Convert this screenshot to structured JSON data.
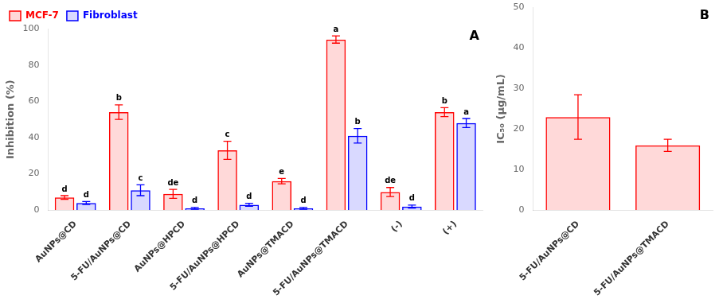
{
  "chart_data": [
    {
      "type": "bar",
      "categories": [
        "AuNPs@CD",
        "5-FU/AuNPs@CD",
        "AuNPs@HPCD",
        "5-FU/AuNPs@HPCD",
        "AuNPs@TMACD",
        "5-FU/AuNPs@TMACD",
        "(-)",
        "(+)"
      ],
      "series": [
        {
          "name": "MCF-7",
          "color": "#FF0000",
          "values": [
            7,
            54,
            9,
            33,
            16,
            94,
            10,
            54
          ],
          "errors": [
            1.0,
            4.0,
            2.5,
            5.0,
            1.5,
            2.0,
            2.5,
            2.5
          ],
          "letters": [
            "d",
            "b",
            "de",
            "c",
            "e",
            "a",
            "de",
            "b"
          ]
        },
        {
          "name": "Fibroblast",
          "color": "#0000FF",
          "values": [
            4,
            11,
            1,
            3,
            1,
            41,
            2,
            48
          ],
          "errors": [
            0.8,
            3.0,
            0.5,
            0.8,
            0.5,
            4.0,
            0.8,
            2.5
          ],
          "letters": [
            "d",
            "c",
            "d",
            "d",
            "d",
            "b",
            "d",
            "a"
          ]
        }
      ],
      "ylabel": "Inhibition (%)",
      "ylim": [
        0,
        100
      ],
      "yticks": [
        0,
        20,
        40,
        60,
        80,
        100
      ],
      "panel_label": "A",
      "legend": "upper left",
      "grid": false
    },
    {
      "type": "bar",
      "categories": [
        "5-FU/AuNPs@CD",
        "5-FU/AuNPs@TMACD"
      ],
      "values": [
        23,
        16
      ],
      "errors": [
        5.5,
        1.5
      ],
      "color": "#FF0000",
      "ylabel": "IC₅₀ (μg/mL)",
      "ylim": [
        0,
        50
      ],
      "yticks": [
        0,
        10,
        20,
        30,
        40,
        50
      ],
      "panel_label": "B",
      "grid": false
    }
  ]
}
